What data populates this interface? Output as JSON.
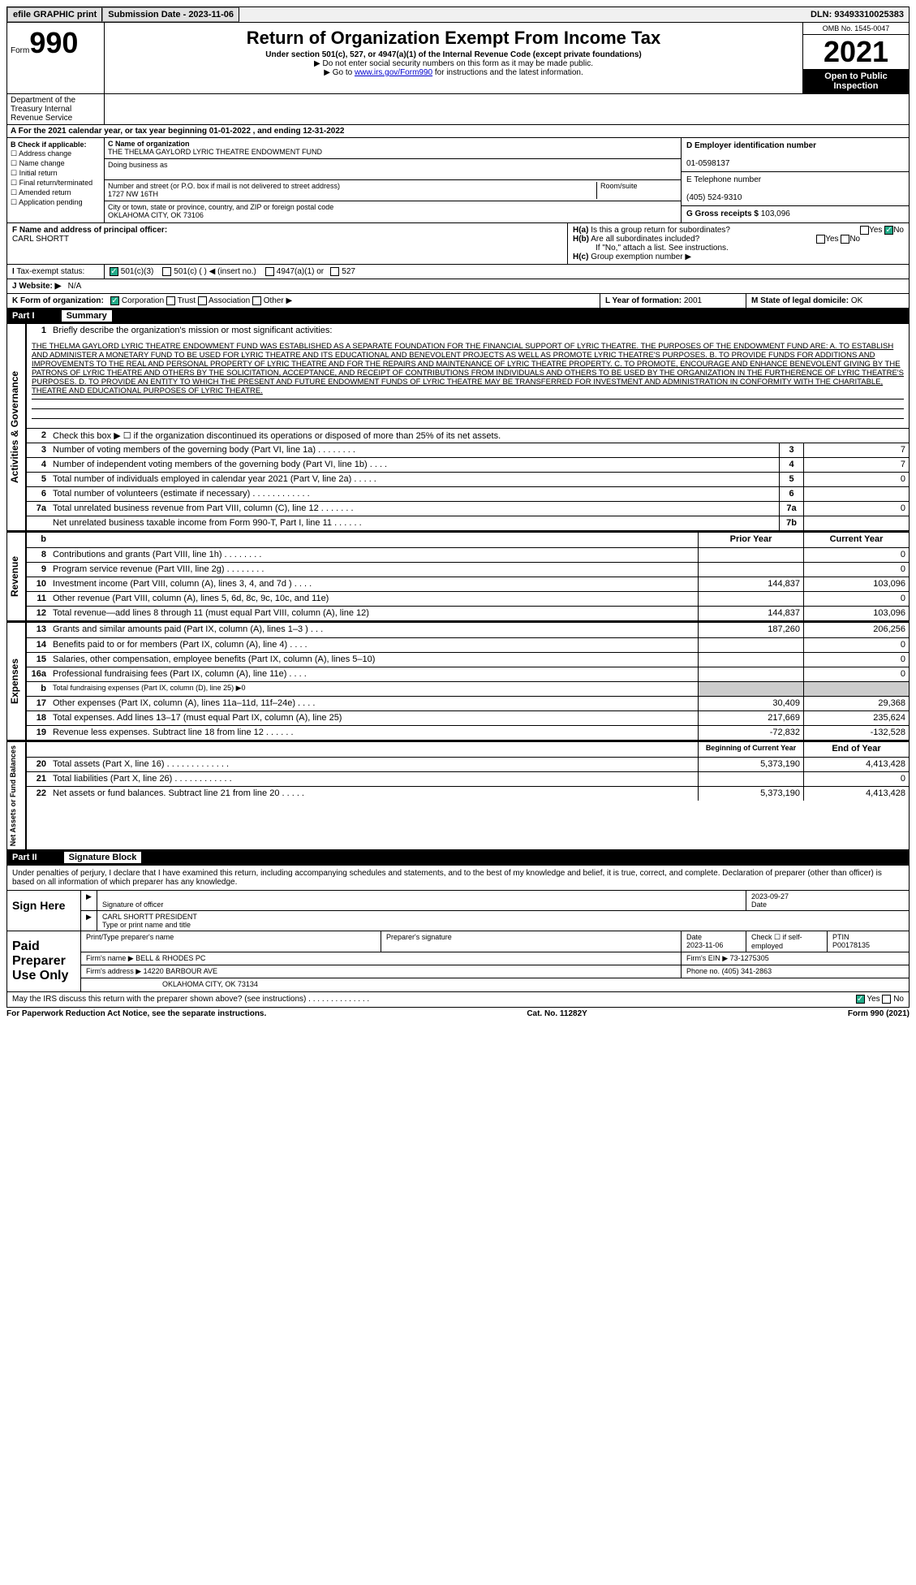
{
  "topbar": {
    "efile": "efile GRAPHIC print",
    "submission_label": "Submission Date - 2023-11-06",
    "dln": "DLN: 93493310025383"
  },
  "header": {
    "form_prefix": "Form",
    "form_num": "990",
    "title": "Return of Organization Exempt From Income Tax",
    "subtitle": "Under section 501(c), 527, or 4947(a)(1) of the Internal Revenue Code (except private foundations)",
    "note1": "▶ Do not enter social security numbers on this form as it may be made public.",
    "note2_pre": "▶ Go to ",
    "note2_link": "www.irs.gov/Form990",
    "note2_post": " for instructions and the latest information.",
    "omb": "OMB No. 1545-0047",
    "year": "2021",
    "open": "Open to Public Inspection",
    "dept": "Department of the Treasury Internal Revenue Service"
  },
  "a": {
    "tax_year": "For the 2021 calendar year, or tax year beginning 01-01-2022   , and ending 12-31-2022",
    "b_header": "B Check if applicable:",
    "b_items": [
      "Address change",
      "Name change",
      "Initial return",
      "Final return/terminated",
      "Amended return",
      "Application pending"
    ],
    "c_label": "C Name of organization",
    "c_name": "THE THELMA GAYLORD LYRIC THEATRE ENDOWMENT FUND",
    "dba_label": "Doing business as",
    "addr_label": "Number and street (or P.O. box if mail is not delivered to street address)",
    "room_label": "Room/suite",
    "addr": "1727 NW 16TH",
    "city_label": "City or town, state or province, country, and ZIP or foreign postal code",
    "city": "OKLAHOMA CITY, OK   73106",
    "d_label": "D Employer identification number",
    "d_val": "01-0598137",
    "e_label": "E Telephone number",
    "e_val": "(405) 524-9310",
    "g_label": "G Gross receipts $",
    "g_val": "103,096",
    "f_label": "F  Name and address of principal officer:",
    "f_val": "CARL SHORTT",
    "h_a": "Is this a group return for subordinates?",
    "h_b": "Are all subordinates included?",
    "h_note": "If \"No,\" attach a list. See instructions.",
    "h_c": "Group exemption number ▶",
    "i_label": "Tax-exempt status:",
    "i_501c3": "501(c)(3)",
    "i_501c": "501(c) (  ) ◀ (insert no.)",
    "i_4947": "4947(a)(1) or",
    "i_527": "527",
    "j_label": "Website: ▶",
    "j_val": "N/A",
    "k_label": "K Form of organization:",
    "k_corp": "Corporation",
    "k_trust": "Trust",
    "k_assoc": "Association",
    "k_other": "Other ▶",
    "l_label": "L Year of formation: ",
    "l_val": "2001",
    "m_label": "M State of legal domicile: ",
    "m_val": "OK"
  },
  "part1": {
    "label": "Part I",
    "title": "Summary",
    "line1_label": "Briefly describe the organization's mission or most significant activities:",
    "mission": "THE THELMA GAYLORD LYRIC THEATRE ENDOWMENT FUND WAS ESTABLISHED AS A SEPARATE FOUNDATION FOR THE FINANCIAL SUPPORT OF LYRIC THEATRE. THE PURPOSES OF THE ENDOWMENT FUND ARE: A. TO ESTABLISH AND ADMINISTER A MONETARY FUND TO BE USED FOR LYRIC THEATRE AND ITS EDUCATIONAL AND BENEVOLENT PROJECTS AS WELL AS PROMOTE LYRIC THEATRE'S PURPOSES. B. TO PROVIDE FUNDS FOR ADDITIONS AND IMPROVEMENTS TO THE REAL AND PERSONAL PROPERTY OF LYRIC THEATRE AND FOR THE REPAIRS AND MAINTENANCE OF LYRIC THEATRE PROPERTY. C. TO PROMOTE, ENCOURAGE AND ENHANCE BENEVOLENT GIVING BY THE PATRONS OF LYRIC THEATRE AND OTHERS BY THE SOLICITATION, ACCEPTANCE, AND RECEIPT OF CONTRIBUTIONS FROM INDIVIDUALS AND OTHERS TO BE USED BY THE ORGANIZATION IN THE FURTHERENCE OF LYRIC THEATRE'S PURPOSES. D. TO PROVIDE AN ENTITY TO WHICH THE PRESENT AND FUTURE ENDOWMENT FUNDS OF LYRIC THEATRE MAY BE TRANSFERRED FOR INVESTMENT AND ADMINISTRATION IN CONFORMITY WITH THE CHARITABLE, THEATRE AND EDUCATIONAL PURPOSES OF LYRIC THEATRE.",
    "line2": "Check this box ▶ ☐ if the organization discontinued its operations or disposed of more than 25% of its net assets.",
    "gov_tab": "Activities & Governance",
    "rev_tab": "Revenue",
    "exp_tab": "Expenses",
    "net_tab": "Net Assets or Fund Balances",
    "rows_single": [
      {
        "n": "3",
        "label": "Number of voting members of the governing body (Part VI, line 1a)   .    .    .    .    .    .    .    .",
        "box": "3",
        "val": "7"
      },
      {
        "n": "4",
        "label": "Number of independent voting members of the governing body (Part VI, line 1b)    .    .    .    .",
        "box": "4",
        "val": "7"
      },
      {
        "n": "5",
        "label": "Total number of individuals employed in calendar year 2021 (Part V, line 2a)    .    .    .    .    .",
        "box": "5",
        "val": "0"
      },
      {
        "n": "6",
        "label": "Total number of volunteers (estimate if necessary)   .    .    .    .    .    .    .    .    .    .    .    .",
        "box": "6",
        "val": ""
      },
      {
        "n": "7a",
        "label": "Total unrelated business revenue from Part VIII, column (C), line 12   .    .    .    .    .    .    .",
        "box": "7a",
        "val": "0"
      },
      {
        "n": "",
        "label": "Net unrelated business taxable income from Form 990-T, Part I, line 11   .    .    .    .    .    .",
        "box": "7b",
        "val": ""
      }
    ],
    "col_prior": "Prior Year",
    "col_current": "Current Year",
    "col_begin": "Beginning of Current Year",
    "col_end": "End of Year",
    "rows_rev": [
      {
        "n": "8",
        "label": "Contributions and grants (Part VIII, line 1h)   .    .    .    .    .    .    .    .",
        "p": "",
        "c": "0"
      },
      {
        "n": "9",
        "label": "Program service revenue (Part VIII, line 2g)   .    .    .    .    .    .    .    .",
        "p": "",
        "c": "0"
      },
      {
        "n": "10",
        "label": "Investment income (Part VIII, column (A), lines 3, 4, and 7d )   .    .    .    .",
        "p": "144,837",
        "c": "103,096"
      },
      {
        "n": "11",
        "label": "Other revenue (Part VIII, column (A), lines 5, 6d, 8c, 9c, 10c, and 11e)",
        "p": "",
        "c": "0"
      },
      {
        "n": "12",
        "label": "Total revenue—add lines 8 through 11 (must equal Part VIII, column (A), line 12)",
        "p": "144,837",
        "c": "103,096"
      }
    ],
    "rows_exp": [
      {
        "n": "13",
        "label": "Grants and similar amounts paid (Part IX, column (A), lines 1–3 )  .    .    .",
        "p": "187,260",
        "c": "206,256"
      },
      {
        "n": "14",
        "label": "Benefits paid to or for members (Part IX, column (A), line 4)   .    .    .    .",
        "p": "",
        "c": "0"
      },
      {
        "n": "15",
        "label": "Salaries, other compensation, employee benefits (Part IX, column (A), lines 5–10)",
        "p": "",
        "c": "0"
      },
      {
        "n": "16a",
        "label": "Professional fundraising fees (Part IX, column (A), line 11e)   .    .    .    .",
        "p": "",
        "c": "0"
      }
    ],
    "row16b": {
      "n": "b",
      "label": "Total fundraising expenses (Part IX, column (D), line 25) ▶0"
    },
    "rows_exp2": [
      {
        "n": "17",
        "label": "Other expenses (Part IX, column (A), lines 11a–11d, 11f–24e)   .    .    .    .",
        "p": "30,409",
        "c": "29,368"
      },
      {
        "n": "18",
        "label": "Total expenses. Add lines 13–17 (must equal Part IX, column (A), line 25)",
        "p": "217,669",
        "c": "235,624"
      },
      {
        "n": "19",
        "label": "Revenue less expenses. Subtract line 18 from line 12   .    .    .    .    .    .",
        "p": "-72,832",
        "c": "-132,528"
      }
    ],
    "rows_net": [
      {
        "n": "20",
        "label": "Total assets (Part X, line 16)  .    .    .    .    .    .    .    .    .    .    .    .    .",
        "p": "5,373,190",
        "c": "4,413,428"
      },
      {
        "n": "21",
        "label": "Total liabilities (Part X, line 26)   .    .    .    .    .    .    .    .    .    .    .    .",
        "p": "",
        "c": "0"
      },
      {
        "n": "22",
        "label": "Net assets or fund balances. Subtract line 21 from line 20   .    .    .    .    .",
        "p": "5,373,190",
        "c": "4,413,428"
      }
    ]
  },
  "part2": {
    "label": "Part II",
    "title": "Signature Block",
    "decl": "Under penalties of perjury, I declare that I have examined this return, including accompanying schedules and statements, and to the best of my knowledge and belief, it is true, correct, and complete. Declaration of preparer (other than officer) is based on all information of which preparer has any knowledge.",
    "sign_here": "Sign Here",
    "sig_officer": "Signature of officer",
    "date_label": "Date",
    "sig_date": "2023-09-27",
    "sig_name": "CARL SHORTT PRESIDENT",
    "sig_name_label": "Type or print name and title",
    "paid": "Paid Preparer Use Only",
    "prep_name_label": "Print/Type preparer's name",
    "prep_sig_label": "Preparer's signature",
    "prep_date": "2023-11-06",
    "check_self": "Check ☐ if self-employed",
    "ptin_label": "PTIN",
    "ptin": "P00178135",
    "firm_name_label": "Firm's name    ▶",
    "firm_name": "BELL & RHODES PC",
    "firm_ein_label": "Firm's EIN ▶",
    "firm_ein": "73-1275305",
    "firm_addr_label": "Firm's address ▶",
    "firm_addr1": "14220 BARBOUR AVE",
    "firm_addr2": "OKLAHOMA CITY, OK  73134",
    "phone_label": "Phone no.",
    "phone": "(405) 341-2863",
    "discuss": "May the IRS discuss this return with the preparer shown above? (see instructions)   .    .    .    .    .    .    .    .    .    .    .    .    .    .",
    "yes": "Yes",
    "no": "No"
  },
  "footer": {
    "paperwork": "For Paperwork Reduction Act Notice, see the separate instructions.",
    "cat": "Cat. No. 11282Y",
    "form": "Form 990 (2021)"
  }
}
